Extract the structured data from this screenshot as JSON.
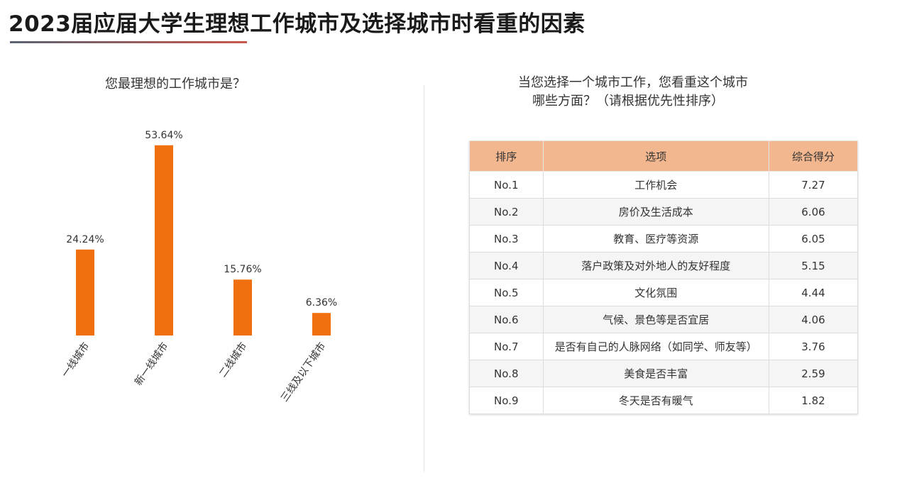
{
  "title": "2023届应届大学生理想工作城市及选择城市时看重的因素",
  "colors": {
    "bar": "#f07010",
    "header_bg": "#f2b78e"
  },
  "chart_data": [
    {
      "type": "bar",
      "title": "您最理想的工作城市是？",
      "categories": [
        "一线城市",
        "新一线城市",
        "二线城市",
        "三线及以下城市"
      ],
      "values": [
        24.24,
        53.64,
        15.76,
        6.36
      ],
      "value_labels": [
        "24.24%",
        "53.64%",
        "15.76%",
        "6.36%"
      ],
      "unit": "%",
      "ylim": [
        0,
        60
      ],
      "grid": false
    },
    {
      "type": "table",
      "title_lines": [
        "当您选择一个城市工作，您看重这个城市",
        "哪些方面？（请根据优先性排序）"
      ],
      "columns": [
        "排序",
        "选项",
        "综合得分"
      ],
      "rows": [
        [
          "No.1",
          "工作机会",
          "7.27"
        ],
        [
          "No.2",
          "房价及生活成本",
          "6.06"
        ],
        [
          "No.3",
          "教育、医疗等资源",
          "6.05"
        ],
        [
          "No.4",
          "落户政策及对外地人的友好程度",
          "5.15"
        ],
        [
          "No.5",
          "文化氛围",
          "4.44"
        ],
        [
          "No.6",
          "气候、景色等是否宜居",
          "4.06"
        ],
        [
          "No.7",
          "是否有自己的人脉网络（如同学、师友等）",
          "3.76"
        ],
        [
          "No.8",
          "美食是否丰富",
          "2.59"
        ],
        [
          "No.9",
          "冬天是否有暖气",
          "1.82"
        ]
      ]
    }
  ]
}
